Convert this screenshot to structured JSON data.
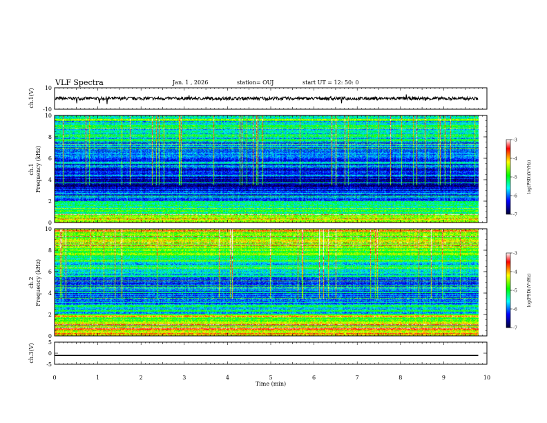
{
  "header": {
    "title": "VLF Spectra",
    "date": "Jan. 1 , 2026",
    "station": "station= OUJ",
    "start": "start  UT =   12: 50: 0"
  },
  "colors": {
    "background": "#ffffff",
    "axis": "#000000",
    "colormap": [
      "#ffffff",
      "#ff0000",
      "#ffff00",
      "#00ff00",
      "#00ffff",
      "#0000ff",
      "#000033"
    ]
  },
  "chart_data": [
    {
      "id": "ch1-waveform",
      "type": "line",
      "ylabel": "ch.1(V)",
      "ylim": [
        -10,
        10
      ],
      "yticks": [
        10,
        -10
      ],
      "xlim": [
        0,
        10
      ],
      "baseline": 0,
      "description_values": {
        "typical_level": 0,
        "noise_amplitude": 1.5
      }
    },
    {
      "id": "ch1-spectrogram",
      "type": "heatmap",
      "ylabel": "ch.1\nFrequency (kHz)",
      "ylabel_lines": [
        "ch.1",
        "Frequency (kHz)"
      ],
      "ylim": [
        0,
        10
      ],
      "yticks": [
        0,
        2,
        4,
        6,
        8,
        10
      ],
      "xlim": [
        0,
        10
      ],
      "data_end_min": 9.8,
      "colorbar": {
        "label": "log(PSD)(V²/Hz)",
        "range": [
          -7,
          -3
        ],
        "ticks": [
          -3,
          -4,
          -5,
          -6,
          -7
        ]
      }
    },
    {
      "id": "ch2-spectrogram",
      "type": "heatmap",
      "ylabel_lines": [
        "ch.2",
        "Frequency (kHz)"
      ],
      "ylim": [
        0,
        10
      ],
      "yticks": [
        0,
        2,
        4,
        6,
        8,
        10
      ],
      "xlim": [
        0,
        10
      ],
      "data_end_min": 9.8,
      "colorbar": {
        "label": "log(PSD)(V²/Hz)",
        "range": [
          -7,
          -3
        ],
        "ticks": [
          -3,
          -4,
          -5,
          -6,
          -7
        ]
      }
    },
    {
      "id": "ch3-waveform",
      "type": "line",
      "ylabel": "ch.3(V)",
      "ylim": [
        -5,
        5
      ],
      "yticks": [
        5,
        0,
        -5
      ],
      "xlim": [
        0,
        10
      ],
      "x": [
        0,
        9.8
      ],
      "values": [
        -1,
        -1
      ]
    }
  ],
  "xaxis": {
    "label": "Time (min)",
    "ticks": [
      0,
      1,
      2,
      3,
      4,
      5,
      6,
      7,
      8,
      9,
      10
    ]
  }
}
